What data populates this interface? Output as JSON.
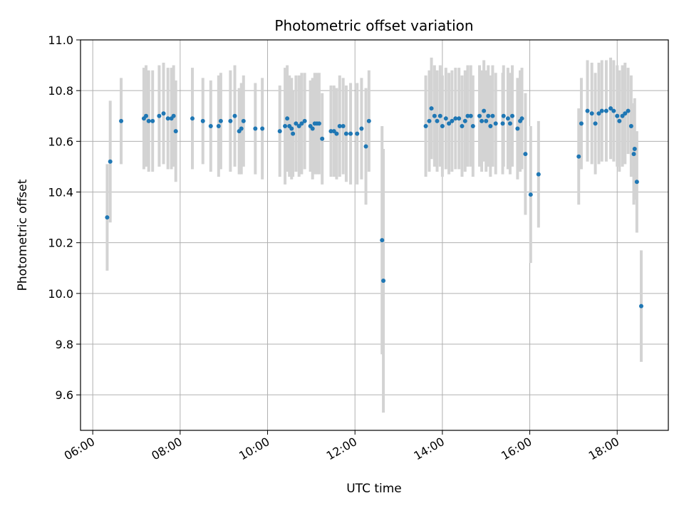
{
  "chart_data": {
    "type": "scatter",
    "title": "Photometric offset variation",
    "xlabel": "UTC time",
    "ylabel": "Photometric offset",
    "x_unit": "hour (UTC)",
    "xlim": [
      5.72,
      19.17
    ],
    "ylim": [
      9.46,
      11.0
    ],
    "xticks": [
      {
        "value": 6,
        "label": "06:00"
      },
      {
        "value": 8,
        "label": "08:00"
      },
      {
        "value": 10,
        "label": "10:00"
      },
      {
        "value": 12,
        "label": "12:00"
      },
      {
        "value": 14,
        "label": "14:00"
      },
      {
        "value": 16,
        "label": "16:00"
      },
      {
        "value": 18,
        "label": "18:00"
      }
    ],
    "yticks": [
      {
        "value": 9.6,
        "label": "9.6"
      },
      {
        "value": 9.8,
        "label": "9.8"
      },
      {
        "value": 10.0,
        "label": "10.0"
      },
      {
        "value": 10.2,
        "label": "10.2"
      },
      {
        "value": 10.4,
        "label": "10.4"
      },
      {
        "value": 10.6,
        "label": "10.6"
      },
      {
        "value": 10.8,
        "label": "10.8"
      },
      {
        "value": 11.0,
        "label": "11.0"
      }
    ],
    "grid": true,
    "colors": {
      "points": "#1f77b4",
      "errorbars": "#d3d3d3",
      "grid": "#b0b0b0"
    },
    "points": [
      [
        6.33,
        10.3,
        0.21
      ],
      [
        6.4,
        10.52,
        0.24
      ],
      [
        6.65,
        10.68,
        0.17
      ],
      [
        7.17,
        10.69,
        0.2
      ],
      [
        7.22,
        10.7,
        0.2
      ],
      [
        7.28,
        10.68,
        0.2
      ],
      [
        7.37,
        10.68,
        0.2
      ],
      [
        7.52,
        10.7,
        0.2
      ],
      [
        7.62,
        10.71,
        0.2
      ],
      [
        7.72,
        10.69,
        0.2
      ],
      [
        7.8,
        10.69,
        0.2
      ],
      [
        7.85,
        10.7,
        0.2
      ],
      [
        7.9,
        10.64,
        0.2
      ],
      [
        8.28,
        10.69,
        0.2
      ],
      [
        8.52,
        10.68,
        0.17
      ],
      [
        8.7,
        10.66,
        0.18
      ],
      [
        8.88,
        10.66,
        0.2
      ],
      [
        8.93,
        10.68,
        0.19
      ],
      [
        9.15,
        10.68,
        0.2
      ],
      [
        9.25,
        10.7,
        0.2
      ],
      [
        9.35,
        10.64,
        0.17
      ],
      [
        9.4,
        10.65,
        0.18
      ],
      [
        9.45,
        10.68,
        0.18
      ],
      [
        9.72,
        10.65,
        0.18
      ],
      [
        9.88,
        10.65,
        0.2
      ],
      [
        10.28,
        10.64,
        0.18
      ],
      [
        10.4,
        10.66,
        0.23
      ],
      [
        10.45,
        10.69,
        0.21
      ],
      [
        10.5,
        10.66,
        0.2
      ],
      [
        10.55,
        10.65,
        0.2
      ],
      [
        10.58,
        10.63,
        0.17
      ],
      [
        10.65,
        10.67,
        0.19
      ],
      [
        10.72,
        10.66,
        0.2
      ],
      [
        10.78,
        10.67,
        0.2
      ],
      [
        10.85,
        10.68,
        0.19
      ],
      [
        10.98,
        10.66,
        0.18
      ],
      [
        11.03,
        10.65,
        0.2
      ],
      [
        11.08,
        10.67,
        0.2
      ],
      [
        11.13,
        10.67,
        0.2
      ],
      [
        11.18,
        10.67,
        0.2
      ],
      [
        11.25,
        10.61,
        0.18
      ],
      [
        11.45,
        10.64,
        0.18
      ],
      [
        11.52,
        10.64,
        0.18
      ],
      [
        11.58,
        10.63,
        0.18
      ],
      [
        11.65,
        10.66,
        0.2
      ],
      [
        11.73,
        10.66,
        0.19
      ],
      [
        11.8,
        10.63,
        0.19
      ],
      [
        11.9,
        10.63,
        0.2
      ],
      [
        12.05,
        10.63,
        0.2
      ],
      [
        12.15,
        10.65,
        0.2
      ],
      [
        12.25,
        10.58,
        0.23
      ],
      [
        12.32,
        10.68,
        0.2
      ],
      [
        12.62,
        10.21,
        0.45
      ],
      [
        12.65,
        10.05,
        0.52
      ],
      [
        13.62,
        10.66,
        0.2
      ],
      [
        13.7,
        10.68,
        0.2
      ],
      [
        13.75,
        10.73,
        0.2
      ],
      [
        13.82,
        10.7,
        0.2
      ],
      [
        13.88,
        10.68,
        0.2
      ],
      [
        13.95,
        10.7,
        0.2
      ],
      [
        14.0,
        10.66,
        0.2
      ],
      [
        14.08,
        10.69,
        0.2
      ],
      [
        14.15,
        10.67,
        0.2
      ],
      [
        14.22,
        10.68,
        0.2
      ],
      [
        14.3,
        10.69,
        0.2
      ],
      [
        14.38,
        10.69,
        0.2
      ],
      [
        14.45,
        10.66,
        0.2
      ],
      [
        14.52,
        10.68,
        0.2
      ],
      [
        14.58,
        10.7,
        0.2
      ],
      [
        14.65,
        10.7,
        0.2
      ],
      [
        14.7,
        10.66,
        0.2
      ],
      [
        14.85,
        10.7,
        0.2
      ],
      [
        14.9,
        10.68,
        0.2
      ],
      [
        14.95,
        10.72,
        0.2
      ],
      [
        15.0,
        10.68,
        0.2
      ],
      [
        15.05,
        10.7,
        0.2
      ],
      [
        15.1,
        10.66,
        0.2
      ],
      [
        15.15,
        10.7,
        0.2
      ],
      [
        15.22,
        10.67,
        0.2
      ],
      [
        15.38,
        10.67,
        0.2
      ],
      [
        15.4,
        10.7,
        0.2
      ],
      [
        15.5,
        10.69,
        0.2
      ],
      [
        15.55,
        10.67,
        0.2
      ],
      [
        15.6,
        10.7,
        0.2
      ],
      [
        15.72,
        10.65,
        0.2
      ],
      [
        15.78,
        10.68,
        0.2
      ],
      [
        15.82,
        10.69,
        0.2
      ],
      [
        15.9,
        10.55,
        0.24
      ],
      [
        16.02,
        10.39,
        0.27
      ],
      [
        16.2,
        10.47,
        0.21
      ],
      [
        17.12,
        10.54,
        0.19
      ],
      [
        17.18,
        10.67,
        0.18
      ],
      [
        17.32,
        10.72,
        0.2
      ],
      [
        17.42,
        10.71,
        0.2
      ],
      [
        17.5,
        10.67,
        0.2
      ],
      [
        17.58,
        10.71,
        0.2
      ],
      [
        17.65,
        10.72,
        0.2
      ],
      [
        17.75,
        10.72,
        0.2
      ],
      [
        17.85,
        10.73,
        0.2
      ],
      [
        17.92,
        10.72,
        0.2
      ],
      [
        18.0,
        10.7,
        0.2
      ],
      [
        18.05,
        10.68,
        0.2
      ],
      [
        18.12,
        10.7,
        0.2
      ],
      [
        18.18,
        10.71,
        0.2
      ],
      [
        18.25,
        10.72,
        0.17
      ],
      [
        18.32,
        10.66,
        0.2
      ],
      [
        18.38,
        10.55,
        0.2
      ],
      [
        18.4,
        10.57,
        0.2
      ],
      [
        18.45,
        10.44,
        0.2
      ],
      [
        18.55,
        9.95,
        0.22
      ]
    ]
  }
}
